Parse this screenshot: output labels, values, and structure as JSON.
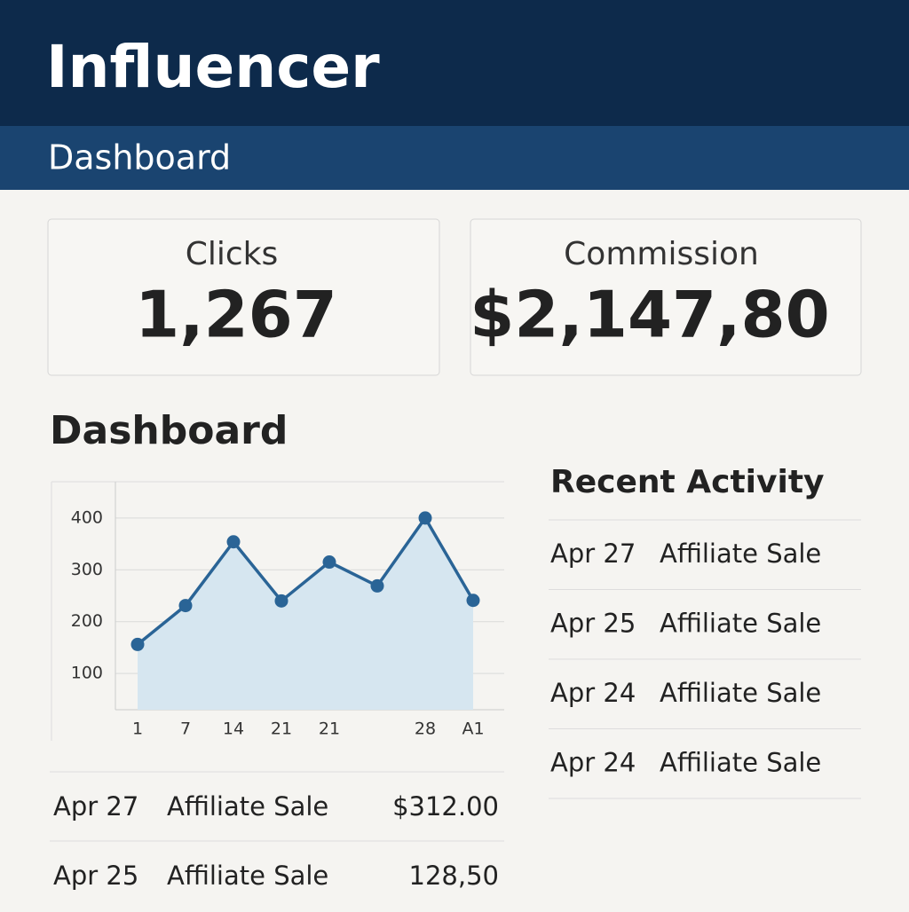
{
  "header": {
    "title": "Influencer",
    "subtitle": "Dashboard"
  },
  "stats": [
    {
      "label": "Clicks",
      "value": "1,267"
    },
    {
      "label": "Commission",
      "value": "$2,147,80"
    }
  ],
  "section_title": "Dashboard",
  "chart": {
    "type": "line",
    "categories": [
      "1",
      "7",
      "14",
      "21",
      "21",
      null,
      "28",
      "A1"
    ],
    "values": [
      156,
      231,
      354,
      240,
      315,
      269,
      400,
      241
    ],
    "color": "#2a6496",
    "fill": "#d6e6f0",
    "ylim": [
      30,
      470
    ],
    "yticks": [
      100,
      200,
      300,
      400
    ],
    "grid": true
  },
  "table": {
    "rows": [
      [
        "Apr 27",
        "Affiliate Sale",
        "$312.00"
      ],
      [
        "Apr 25",
        "Affiliate Sale",
        "128,50"
      ]
    ]
  },
  "recent": {
    "title": "Recent Activity",
    "rows": [
      [
        "Apr 27",
        "Affiliate Sale"
      ],
      [
        "Apr 25",
        "Affiliate Sale"
      ],
      [
        "Apr 24",
        "Affiliate Sale"
      ],
      [
        "Apr 24",
        "Affiliate Sale"
      ]
    ]
  }
}
